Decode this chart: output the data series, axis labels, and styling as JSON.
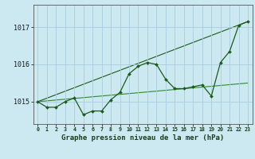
{
  "title": "Graphe pression niveau de la mer (hPa)",
  "background_color": "#cce8f0",
  "grid_color": "#aaccdd",
  "line_color_dark": "#1a5c1a",
  "line_color_mid": "#2e7d2e",
  "xlim": [
    -0.5,
    23.5
  ],
  "ylim": [
    1014.4,
    1017.6
  ],
  "yticks": [
    1015,
    1016,
    1017
  ],
  "xticks": [
    0,
    1,
    2,
    3,
    4,
    5,
    6,
    7,
    8,
    9,
    10,
    11,
    12,
    13,
    14,
    15,
    16,
    17,
    18,
    19,
    20,
    21,
    22,
    23
  ],
  "series_main": {
    "x": [
      0,
      1,
      2,
      3,
      4,
      5,
      6,
      7,
      8,
      9,
      10,
      11,
      12,
      13,
      14,
      15,
      16,
      17,
      18,
      19,
      20,
      21,
      22,
      23
    ],
    "y": [
      1015.0,
      1014.85,
      1014.85,
      1015.0,
      1015.1,
      1014.65,
      1014.75,
      1014.75,
      1015.05,
      1015.25,
      1015.75,
      1015.95,
      1016.05,
      1016.0,
      1015.6,
      1015.35,
      1015.35,
      1015.4,
      1015.45,
      1015.15,
      1016.05,
      1016.35,
      1017.05,
      1017.15
    ],
    "color": "#1a5c1a",
    "linewidth": 0.9,
    "markersize": 2.0
  },
  "series_trend1": {
    "x": [
      0,
      23
    ],
    "y": [
      1015.0,
      1017.15
    ],
    "color": "#1a5c1a",
    "linewidth": 0.8
  },
  "series_trend2": {
    "x": [
      0,
      23
    ],
    "y": [
      1015.0,
      1015.5
    ],
    "color": "#2e8b2e",
    "linewidth": 0.8
  }
}
